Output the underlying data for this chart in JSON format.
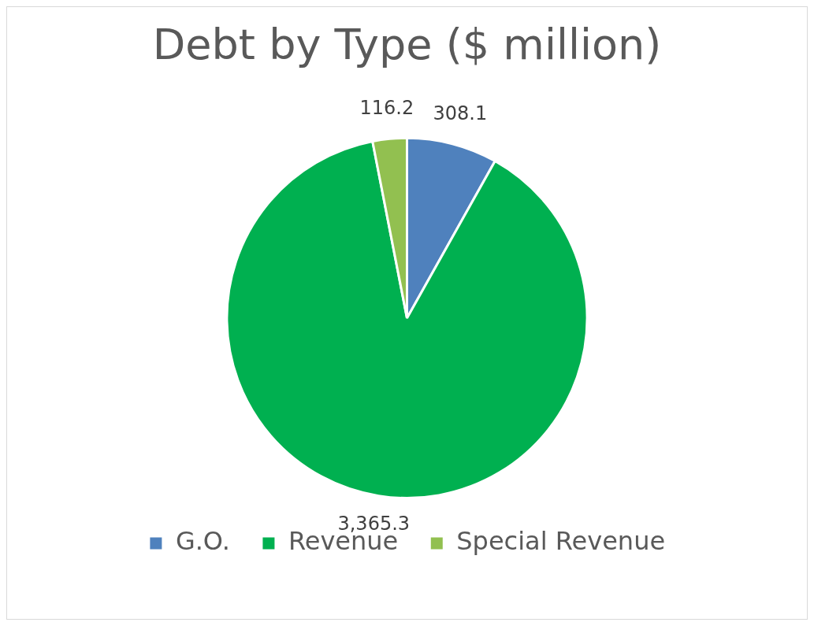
{
  "chart_data": {
    "type": "pie",
    "title": "Debt by Type ($ million)",
    "categories": [
      "G.O.",
      "Revenue",
      "Special Revenue"
    ],
    "values": [
      308.1,
      3365.3,
      116.2
    ],
    "colors": [
      "#4f81bd",
      "#00b050",
      "#92c050"
    ],
    "value_labels": [
      "308.1",
      "3,365.3",
      "116.2"
    ],
    "legend": "bottom"
  }
}
